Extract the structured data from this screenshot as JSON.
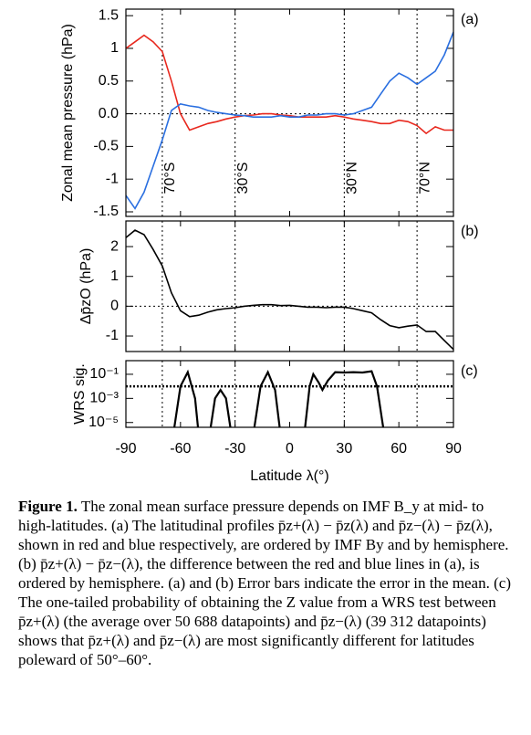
{
  "chart_data": [
    {
      "type": "line",
      "panel_label": "(a)",
      "ylabel": "Zonal mean pressure (hPa)",
      "x": [
        -90,
        -85,
        -80,
        -75,
        -70,
        -65,
        -60,
        -55,
        -50,
        -45,
        -40,
        -35,
        -30,
        -25,
        -20,
        -15,
        -10,
        -5,
        0,
        5,
        10,
        15,
        20,
        25,
        30,
        35,
        40,
        45,
        50,
        55,
        60,
        65,
        70,
        75,
        80,
        85,
        90
      ],
      "series": [
        {
          "color": "#e8281e",
          "values": [
            1.0,
            1.1,
            1.2,
            1.1,
            0.95,
            0.5,
            0.0,
            -0.25,
            -0.2,
            -0.15,
            -0.12,
            -0.08,
            -0.05,
            -0.03,
            -0.02,
            0,
            0,
            -0.02,
            -0.03,
            -0.05,
            -0.05,
            -0.05,
            -0.05,
            -0.03,
            -0.05,
            -0.08,
            -0.1,
            -0.12,
            -0.15,
            -0.15,
            -0.1,
            -0.12,
            -0.18,
            -0.3,
            -0.2,
            -0.25,
            -0.25
          ]
        },
        {
          "color": "#2a6fe0",
          "values": [
            -1.25,
            -1.45,
            -1.2,
            -0.8,
            -0.4,
            0.05,
            0.15,
            0.12,
            0.1,
            0.05,
            0.02,
            0,
            -0.02,
            -0.03,
            -0.05,
            -0.05,
            -0.05,
            -0.03,
            -0.05,
            -0.05,
            -0.02,
            -0.02,
            0,
            0,
            -0.02,
            0,
            0.05,
            0.1,
            0.3,
            0.5,
            0.62,
            0.55,
            0.45,
            0.55,
            0.65,
            0.9,
            1.25
          ]
        }
      ],
      "xlim": [
        -90,
        90
      ],
      "ylim": [
        -1.57,
        1.6
      ],
      "yticks": [
        1.5,
        1.0,
        0.5,
        {
          "value": 0,
          "label": "0.0"
        },
        -0.5,
        -1.0,
        -1.5
      ],
      "hline": 0,
      "vlines": [
        -70,
        -30,
        30,
        70
      ],
      "vline_labels": [
        "70°S",
        "30°S",
        "30°N",
        "70°N"
      ]
    },
    {
      "type": "line",
      "panel_label": "(b)",
      "ylabel": "Δp̄zO  (hPa)",
      "x": [
        -90,
        -85,
        -80,
        -75,
        -70,
        -65,
        -60,
        -55,
        -50,
        -45,
        -40,
        -35,
        -30,
        -25,
        -20,
        -15,
        -10,
        -5,
        0,
        5,
        10,
        15,
        20,
        25,
        30,
        35,
        40,
        45,
        50,
        55,
        60,
        65,
        70,
        75,
        80,
        85,
        90
      ],
      "series": [
        {
          "color": "#000000",
          "values": [
            2.3,
            2.55,
            2.4,
            1.9,
            1.35,
            0.45,
            -0.15,
            -0.35,
            -0.3,
            -0.2,
            -0.12,
            -0.08,
            -0.05,
            0,
            0.03,
            0.05,
            0.05,
            0.02,
            0.03,
            0,
            -0.03,
            -0.03,
            -0.05,
            -0.03,
            -0.03,
            -0.08,
            -0.15,
            -0.22,
            -0.45,
            -0.65,
            -0.72,
            -0.67,
            -0.63,
            -0.85,
            -0.85,
            -1.15,
            -1.45
          ]
        }
      ],
      "xlim": [
        -90,
        90
      ],
      "ylim": [
        -1.52,
        2.86
      ],
      "yticks": [
        2,
        1,
        0,
        -1
      ],
      "hline": 0
    },
    {
      "type": "line",
      "panel_label": "(c)",
      "ylabel": "WRS sig.",
      "xlabel": "Latitude λ(°)",
      "log_y": true,
      "x": [
        -64,
        -60,
        -56,
        -52,
        -50,
        -44,
        -41,
        -38,
        -35,
        -32,
        -20,
        -16,
        -12,
        -8,
        -5,
        8,
        11,
        13,
        16,
        18,
        21,
        25,
        30,
        35,
        40,
        45,
        48,
        52
      ],
      "series": [
        {
          "color": "#000000",
          "values": [
            1e-06,
            0.01,
            0.15,
            0.001,
            1e-06,
            1e-06,
            0.001,
            0.005,
            0.001,
            1e-06,
            1e-06,
            0.01,
            0.15,
            0.005,
            1e-06,
            1e-06,
            0.01,
            0.1,
            0.02,
            0.005,
            0.03,
            0.15,
            0.14,
            0.15,
            0.14,
            0.18,
            0.01,
            1e-06
          ]
        }
      ],
      "xlim": [
        -90,
        90
      ],
      "ylim": [
        4e-06,
        1.35
      ],
      "yticks": [
        {
          "value": 0.1,
          "label": "10⁻¹"
        },
        {
          "value": 0.001,
          "label": "10⁻³"
        },
        {
          "value": 1e-05,
          "label": "10⁻⁵"
        }
      ],
      "xticks": [
        -90,
        -60,
        -30,
        0,
        30,
        60,
        90
      ],
      "hline": 0.01
    }
  ],
  "caption": {
    "label": "Figure 1.",
    "text": "The zonal mean surface pressure depends on IMF B_y at mid- to high-latitudes. (a) The latitudinal profiles p̄z+(λ) − p̄z(λ) and p̄z−(λ) − p̄z(λ), shown in red and blue respectively, are ordered by IMF By and by hemisphere. (b) p̄z+(λ) − p̄z−(λ), the difference between the red and blue lines in (a), is ordered by hemisphere. (a) and (b) Error bars indicate the error in the mean. (c) The one-tailed probability of obtaining the Z value from a WRS test between p̄z+(λ) (the average over 50 688 datapoints) and p̄z−(λ) (39 312 datapoints) shows that p̄z+(λ) and p̄z−(λ) are most significantly different for latitudes poleward of 50°–60°."
  }
}
